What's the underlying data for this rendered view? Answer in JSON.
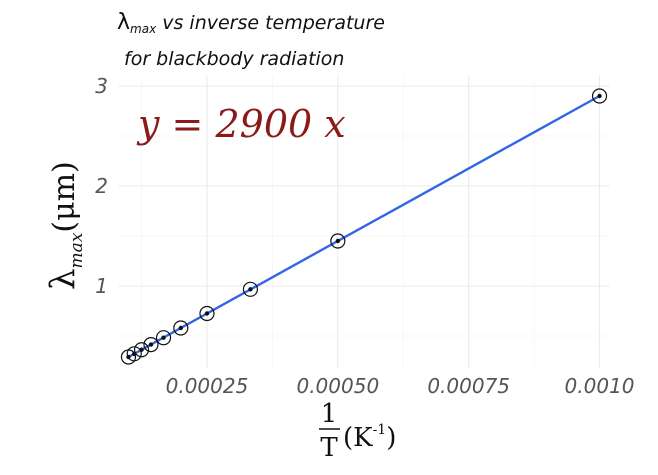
{
  "chart_data": {
    "type": "scatter",
    "title_line1_symbol": "λ",
    "title_line1_sub": "max",
    "title_line1_rest": " vs inverse temperature",
    "title_line2": "for blackbody radiation",
    "ylabel_symbol": "λ",
    "ylabel_sub": "max",
    "ylabel_unit": "(μm)",
    "xlabel_numerator": "1",
    "xlabel_denominator": "T",
    "xlabel_unit_base": "(K",
    "xlabel_unit_exp": "-1",
    "xlabel_unit_close": ")",
    "annotation": "y = 2900  x",
    "xlim": [
      8e-05,
      0.00102
    ],
    "ylim": [
      0.18,
      3.1
    ],
    "x_ticks": [
      0.00025,
      0.0005,
      0.00075,
      0.001
    ],
    "x_tick_labels": [
      "0.00025",
      "0.00050",
      "0.00075",
      "0.0010"
    ],
    "y_ticks": [
      1,
      2,
      3
    ],
    "y_tick_labels": [
      "1",
      "2",
      "3"
    ],
    "grid": true,
    "fit_line": {
      "slope": 2900,
      "intercept": 0,
      "color": "#3366e6"
    },
    "points": [
      {
        "x": 0.0001,
        "y": 0.29
      },
      {
        "x": 0.000111,
        "y": 0.322
      },
      {
        "x": 0.000125,
        "y": 0.3625
      },
      {
        "x": 0.000143,
        "y": 0.414
      },
      {
        "x": 0.000167,
        "y": 0.483
      },
      {
        "x": 0.0002,
        "y": 0.58
      },
      {
        "x": 0.00025,
        "y": 0.725
      },
      {
        "x": 0.000333,
        "y": 0.967
      },
      {
        "x": 0.0005,
        "y": 1.45
      },
      {
        "x": 0.001,
        "y": 2.9
      }
    ],
    "point_color": "#111111"
  }
}
